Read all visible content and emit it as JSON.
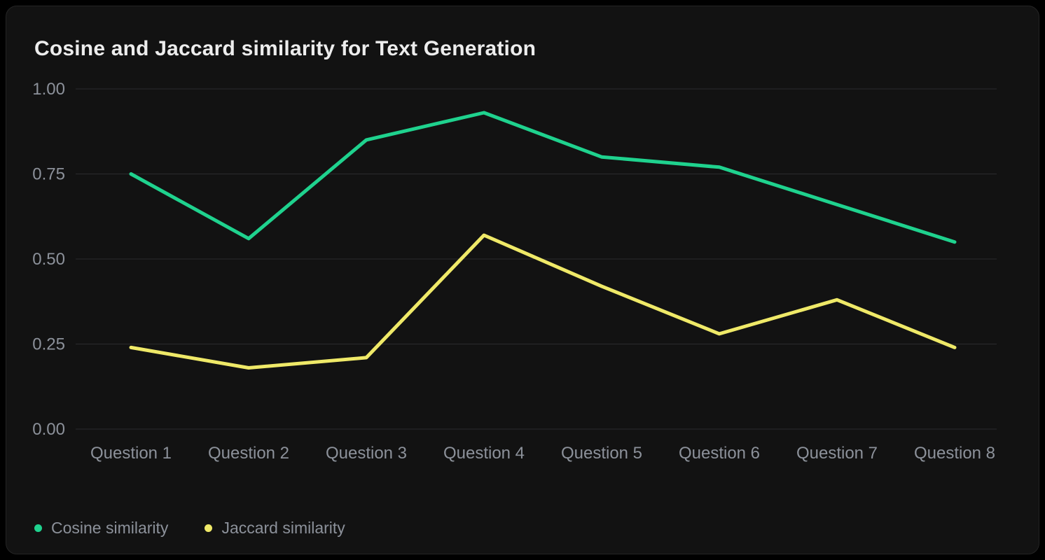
{
  "title": "Cosine and Jaccard similarity for Text Generation",
  "colors": {
    "page_background": "#000000",
    "card_background": "#121212",
    "card_border": "#242424",
    "grid": "#2b2b2e",
    "axis_text": "#8c919a",
    "title_text": "#ededed",
    "cosine_line": "#1fd28e",
    "jaccard_line": "#efe968"
  },
  "chart_data": {
    "type": "line",
    "title": "Cosine and Jaccard similarity for Text Generation",
    "categories": [
      "Question 1",
      "Question 2",
      "Question 3",
      "Question 4",
      "Question 5",
      "Question 6",
      "Question 7",
      "Question 8"
    ],
    "series": [
      {
        "name": "Cosine similarity",
        "color": "#1fd28e",
        "values": [
          0.75,
          0.56,
          0.85,
          0.93,
          0.8,
          0.77,
          0.66,
          0.55
        ]
      },
      {
        "name": "Jaccard similarity",
        "color": "#efe968",
        "values": [
          0.24,
          0.18,
          0.21,
          0.57,
          0.42,
          0.28,
          0.38,
          0.24
        ]
      }
    ],
    "xlabel": "",
    "ylabel": "",
    "ylim": [
      0,
      1
    ],
    "y_ticks": [
      {
        "label": "1.00",
        "value": 1.0
      },
      {
        "label": "0.75",
        "value": 0.75
      },
      {
        "label": "0.50",
        "value": 0.5
      },
      {
        "label": "0.25",
        "value": 0.25
      },
      {
        "label": "0.00",
        "value": 0.0
      }
    ],
    "grid": true,
    "legend_position": "bottom-left"
  }
}
